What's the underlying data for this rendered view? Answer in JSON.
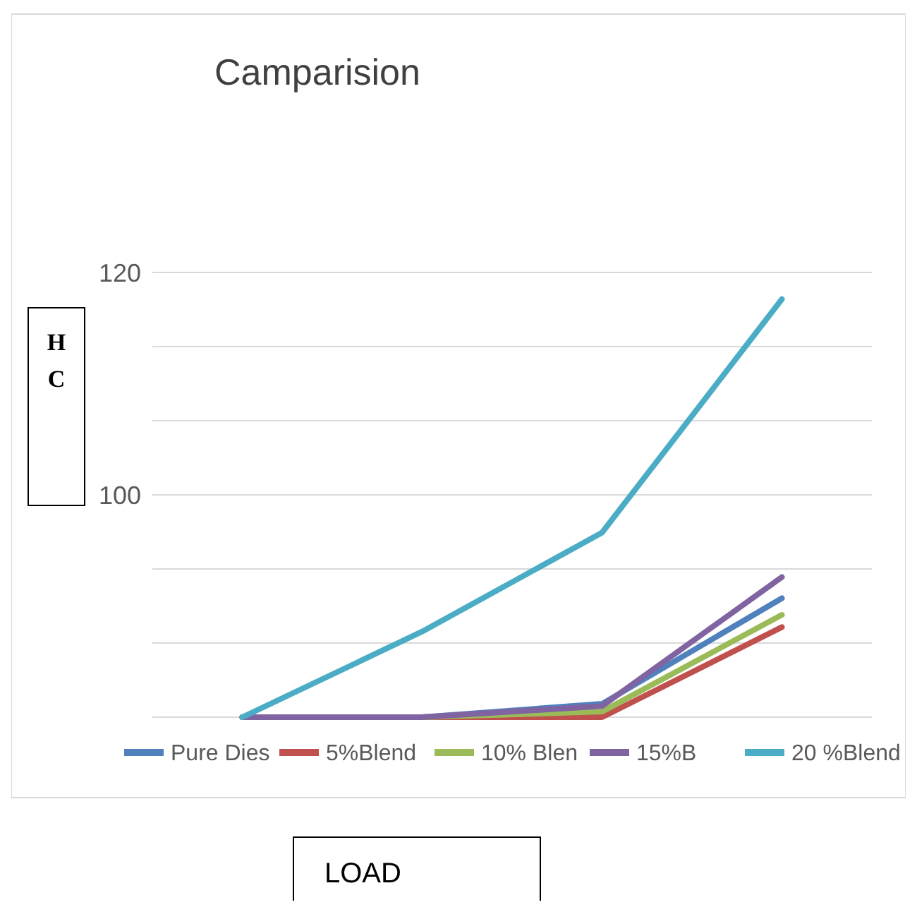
{
  "chart_data": {
    "type": "line",
    "title": "Camparision",
    "xlabel": "LOAD",
    "ylabel": "HC",
    "categories": [
      null,
      null,
      null,
      null
    ],
    "ylim": [
      80,
      120
    ],
    "yticks": [
      {
        "value": 80,
        "label": null
      },
      {
        "value": 86.67,
        "label": null
      },
      {
        "value": 93.33,
        "label": null
      },
      100,
      {
        "value": 106.67,
        "label": null
      },
      {
        "value": 113.33,
        "label": null
      },
      120
    ],
    "tick_labels": "y",
    "grid": "y",
    "legend": "bottom",
    "marker": "none",
    "line_style": "solid",
    "series": [
      {
        "name": "Pure Dies",
        "color": "#4f81bd",
        "values": [
          80,
          80,
          81.2,
          90.7
        ]
      },
      {
        "name": "5%Blend",
        "color": "#c0504d",
        "values": [
          80,
          80,
          80,
          88.1
        ]
      },
      {
        "name": "10% Blen",
        "color": "#9bbb59",
        "values": [
          80,
          80,
          80.5,
          89.2
        ]
      },
      {
        "name": "15%B",
        "color": "#8064a2",
        "values": [
          80,
          80,
          81,
          92.6
        ]
      },
      {
        "name": "20 %Blend",
        "color": "#4bacc6",
        "values": [
          80,
          87.7,
          96.6,
          117.6
        ]
      }
    ]
  }
}
